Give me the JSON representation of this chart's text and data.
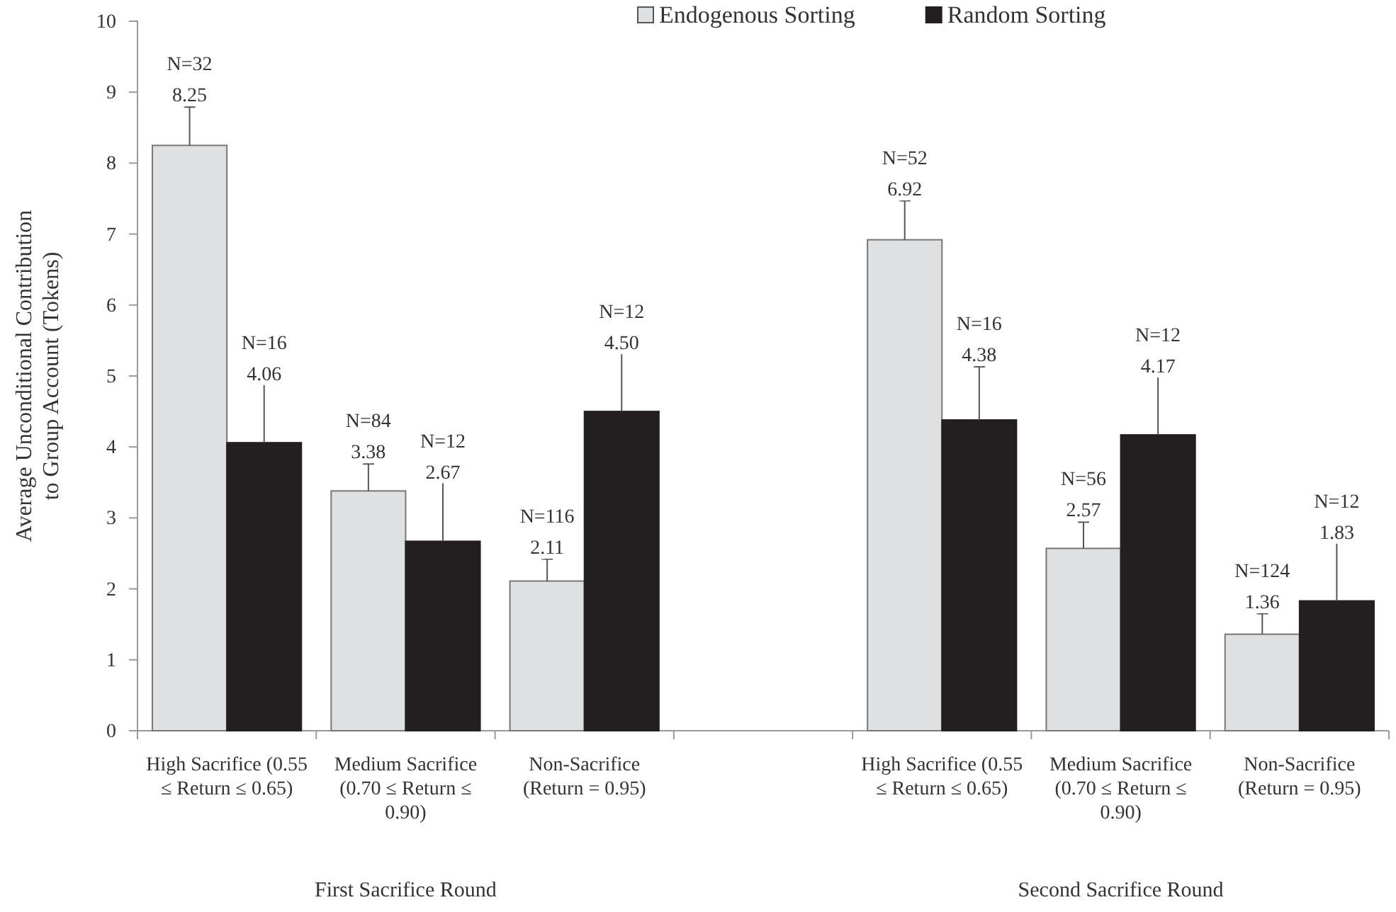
{
  "chart_data": {
    "type": "bar",
    "ylabel": "Average Unconditional Contribution\nto Group Account (Tokens)",
    "categories": [
      "High Sacrifice (0.55 ≤ Return ≤ 0.65)",
      "Medium Sacrifice (0.70 ≤ Return ≤ 0.90)",
      "Non-Sacrifice (Return = 0.95)",
      null,
      "High Sacrifice (0.55 ≤ Return ≤ 0.65)",
      "Medium Sacrifice (0.70 ≤ Return ≤ 0.90)",
      "Non-Sacrifice (Return = 0.95)"
    ],
    "series": [
      {
        "name": "Endogenous Sorting",
        "color": "#dfe0e2",
        "values": [
          8.25,
          3.38,
          2.11,
          null,
          6.92,
          2.57,
          1.36
        ],
        "errors": [
          [
            8.25,
            8.79
          ],
          [
            3.38,
            3.76
          ],
          [
            2.11,
            2.42
          ],
          null,
          [
            6.92,
            7.47
          ],
          [
            2.57,
            2.94
          ],
          [
            1.36,
            1.65
          ]
        ],
        "value_labels": [
          "N=32\n8.25",
          "N=84\n3.38",
          "N=116\n2.11",
          null,
          "N=52\n6.92",
          "N=56\n2.57",
          "N=124\n1.36"
        ]
      },
      {
        "name": "Random Sorting",
        "color": "#231f20",
        "values": [
          4.06,
          2.67,
          4.5,
          null,
          4.38,
          4.17,
          1.83
        ],
        "errors": [
          [
            4.06,
            4.92
          ],
          [
            2.67,
            3.57
          ],
          [
            4.5,
            5.35
          ],
          null,
          [
            4.38,
            5.13
          ],
          [
            4.17,
            5.16
          ],
          [
            1.83,
            2.66
          ]
        ],
        "value_labels": [
          "N=16\n4.06",
          "N=12\n2.67",
          "N=12\n4.50",
          null,
          "N=16\n4.38",
          "N=12\n4.17",
          "N=12\n1.83"
        ]
      }
    ],
    "ylim": [
      0,
      10
    ],
    "yticks": [
      0,
      1,
      2,
      3,
      4,
      5,
      6,
      7,
      8,
      9,
      10
    ],
    "grid": false,
    "legend": "top",
    "annotations": [
      "First Sacrifice Round",
      "Second Sacrifice Round"
    ]
  }
}
